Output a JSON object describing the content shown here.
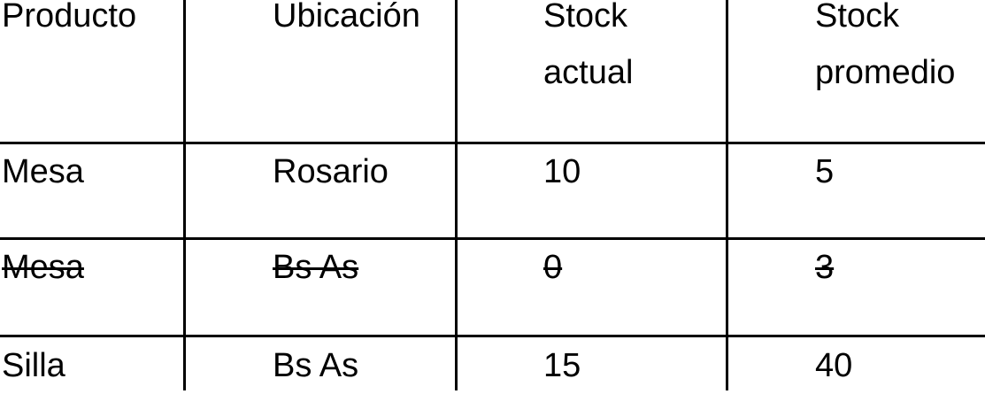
{
  "table": {
    "headers": [
      [
        "Producto"
      ],
      [
        "Ubicación"
      ],
      [
        "Stock",
        "actual"
      ],
      [
        "Stock",
        "promedio"
      ]
    ],
    "rows": [
      {
        "cells": [
          "Mesa",
          "Rosario",
          "10",
          "5"
        ],
        "strikethrough": false
      },
      {
        "cells": [
          "Mesa",
          "Bs As",
          "0",
          "3"
        ],
        "strikethrough": true
      },
      {
        "cells": [
          "Silla",
          "Bs As",
          "15",
          "40"
        ],
        "strikethrough": false
      }
    ]
  }
}
